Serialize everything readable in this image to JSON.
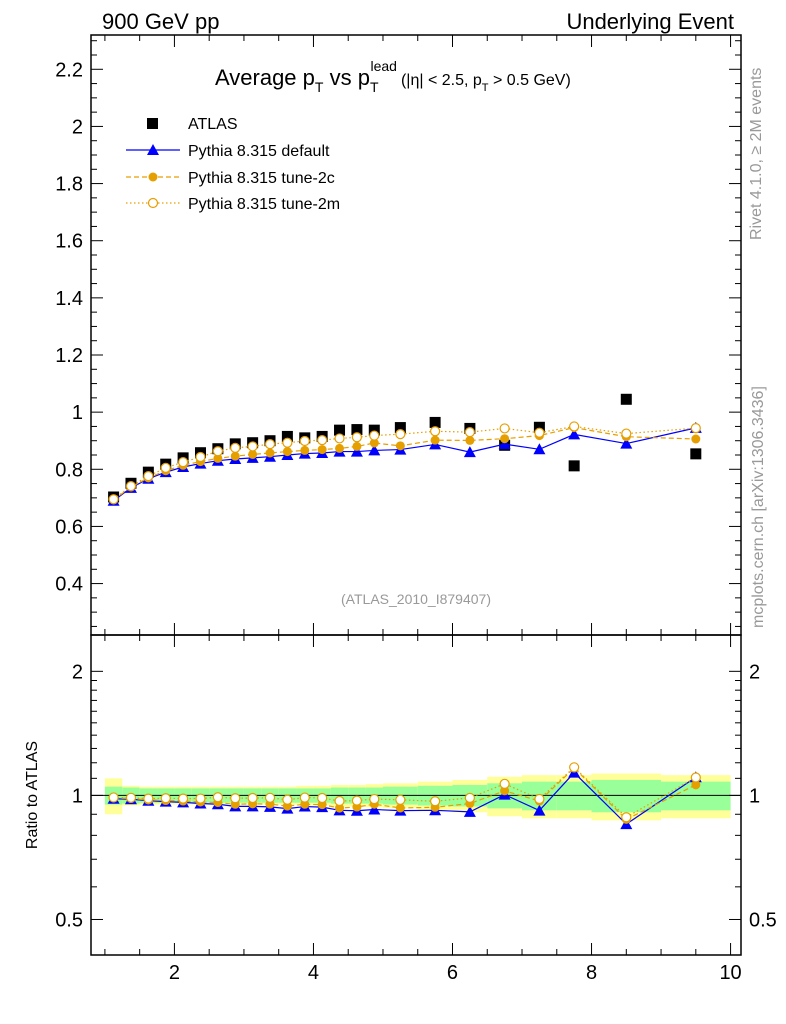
{
  "header": {
    "left": "900 GeV pp",
    "right": "Underlying Event"
  },
  "side": {
    "rivet": "Rivet 4.1.0, ≥ 2M events",
    "mcplots": "mcplots.cern.ch [arXiv:1306.3436]"
  },
  "chart_data": {
    "type": "scatter",
    "title": {
      "main": "Average p",
      "main_sub": "T",
      "vs": " vs p",
      "vs_sub": "T",
      "vs_sup": "lead",
      "cuts_a": "(|η| < 2.5, p",
      "cuts_sub": "T",
      "cuts_b": " > 0.5 GeV)"
    },
    "analysis_tag": "(ATLAS_2010_I879407)",
    "ratio_ylabel": "Ratio to ATLAS",
    "x": {
      "range": [
        0.8,
        10.15
      ],
      "ticks": [
        2,
        4,
        6,
        8,
        10
      ],
      "labels": [
        "2",
        "4",
        "6",
        "8",
        "10"
      ]
    },
    "y": {
      "range": [
        0.22,
        2.32
      ],
      "ticks": [
        0.4,
        0.6,
        0.8,
        1,
        1.2,
        1.4,
        1.6,
        1.8,
        2,
        2.2
      ],
      "labels": [
        "0.4",
        "0.6",
        "0.8",
        "1",
        "1.2",
        "1.4",
        "1.6",
        "1.8",
        "2",
        "2.2"
      ]
    },
    "ratio_y": {
      "range": [
        0.41,
        2.45
      ],
      "log": true,
      "ticks": [
        0.5,
        1,
        2
      ],
      "labels": [
        "0.5",
        "1",
        "2"
      ]
    },
    "bins": [
      {
        "lo": 1.0,
        "hi": 1.25
      },
      {
        "lo": 1.25,
        "hi": 1.5
      },
      {
        "lo": 1.5,
        "hi": 1.75
      },
      {
        "lo": 1.75,
        "hi": 2.0
      },
      {
        "lo": 2.0,
        "hi": 2.25
      },
      {
        "lo": 2.25,
        "hi": 2.5
      },
      {
        "lo": 2.5,
        "hi": 2.75
      },
      {
        "lo": 2.75,
        "hi": 3.0
      },
      {
        "lo": 3.0,
        "hi": 3.25
      },
      {
        "lo": 3.25,
        "hi": 3.5
      },
      {
        "lo": 3.5,
        "hi": 3.75
      },
      {
        "lo": 3.75,
        "hi": 4.0
      },
      {
        "lo": 4.0,
        "hi": 4.25
      },
      {
        "lo": 4.25,
        "hi": 4.5
      },
      {
        "lo": 4.5,
        "hi": 4.75
      },
      {
        "lo": 4.75,
        "hi": 5.0
      },
      {
        "lo": 5.0,
        "hi": 5.5
      },
      {
        "lo": 5.5,
        "hi": 6.0
      },
      {
        "lo": 6.0,
        "hi": 6.5
      },
      {
        "lo": 6.5,
        "hi": 7.0
      },
      {
        "lo": 7.0,
        "hi": 7.5
      },
      {
        "lo": 7.5,
        "hi": 8.0
      },
      {
        "lo": 8.0,
        "hi": 9.0
      },
      {
        "lo": 9.0,
        "hi": 10.0
      }
    ],
    "band_green": [
      0.05,
      0.045,
      0.04,
      0.04,
      0.04,
      0.04,
      0.04,
      0.04,
      0.04,
      0.04,
      0.04,
      0.04,
      0.04,
      0.045,
      0.045,
      0.045,
      0.05,
      0.055,
      0.06,
      0.07,
      0.08,
      0.08,
      0.09,
      0.08
    ],
    "band_yellow": [
      0.1,
      0.055,
      0.05,
      0.05,
      0.05,
      0.05,
      0.05,
      0.05,
      0.05,
      0.05,
      0.05,
      0.055,
      0.055,
      0.06,
      0.06,
      0.065,
      0.07,
      0.08,
      0.09,
      0.11,
      0.12,
      0.12,
      0.13,
      0.12
    ],
    "series": [
      {
        "name": "ATLAS",
        "color": "#000000",
        "marker": "square",
        "line": "none",
        "x": [
          1.125,
          1.375,
          1.625,
          1.875,
          2.125,
          2.375,
          2.625,
          2.875,
          3.125,
          3.375,
          3.625,
          3.875,
          4.125,
          4.375,
          4.625,
          4.875,
          5.25,
          5.75,
          6.25,
          6.75,
          7.25,
          7.75,
          8.5,
          9.5
        ],
        "y": [
          0.703,
          0.751,
          0.79,
          0.818,
          0.84,
          0.858,
          0.872,
          0.889,
          0.893,
          0.9,
          0.915,
          0.91,
          0.915,
          0.937,
          0.939,
          0.937,
          0.946,
          0.964,
          0.943,
          0.884,
          0.947,
          0.812,
          1.045,
          0.854
        ]
      },
      {
        "name": "Pythia 8.315 default",
        "color": "#0000ff",
        "marker": "triangle",
        "line": "solid",
        "x": [
          1.125,
          1.375,
          1.625,
          1.875,
          2.125,
          2.375,
          2.625,
          2.875,
          3.125,
          3.375,
          3.625,
          3.875,
          4.125,
          4.375,
          4.625,
          4.875,
          5.25,
          5.75,
          6.25,
          6.75,
          7.25,
          7.75,
          8.5,
          9.5
        ],
        "y": [
          0.69,
          0.735,
          0.767,
          0.79,
          0.808,
          0.82,
          0.83,
          0.836,
          0.84,
          0.844,
          0.85,
          0.855,
          0.857,
          0.862,
          0.862,
          0.866,
          0.869,
          0.887,
          0.86,
          0.888,
          0.87,
          0.922,
          0.89,
          0.945
        ]
      },
      {
        "name": "Pythia 8.315 tune-2c",
        "color": "#e69f00",
        "marker": "dot",
        "line": "dashed",
        "x": [
          1.125,
          1.375,
          1.625,
          1.875,
          2.125,
          2.375,
          2.625,
          2.875,
          3.125,
          3.375,
          3.625,
          3.875,
          4.125,
          4.375,
          4.625,
          4.875,
          5.25,
          5.75,
          6.25,
          6.75,
          7.25,
          7.75,
          8.5,
          9.5
        ],
        "y": [
          0.693,
          0.738,
          0.77,
          0.795,
          0.814,
          0.827,
          0.838,
          0.846,
          0.852,
          0.857,
          0.862,
          0.866,
          0.869,
          0.873,
          0.88,
          0.892,
          0.882,
          0.902,
          0.901,
          0.907,
          0.918,
          0.946,
          0.914,
          0.906
        ]
      },
      {
        "name": "Pythia 8.315 tune-2m",
        "color": "#e69f00",
        "marker": "circle-open",
        "line": "dotted",
        "x": [
          1.125,
          1.375,
          1.625,
          1.875,
          2.125,
          2.375,
          2.625,
          2.875,
          3.125,
          3.375,
          3.625,
          3.875,
          4.125,
          4.375,
          4.625,
          4.875,
          5.25,
          5.75,
          6.25,
          6.75,
          7.25,
          7.75,
          8.5,
          9.5
        ],
        "y": [
          0.695,
          0.741,
          0.776,
          0.805,
          0.825,
          0.843,
          0.863,
          0.875,
          0.88,
          0.888,
          0.893,
          0.899,
          0.902,
          0.908,
          0.912,
          0.918,
          0.923,
          0.933,
          0.93,
          0.943,
          0.928,
          0.95,
          0.925,
          0.944
        ]
      }
    ]
  }
}
